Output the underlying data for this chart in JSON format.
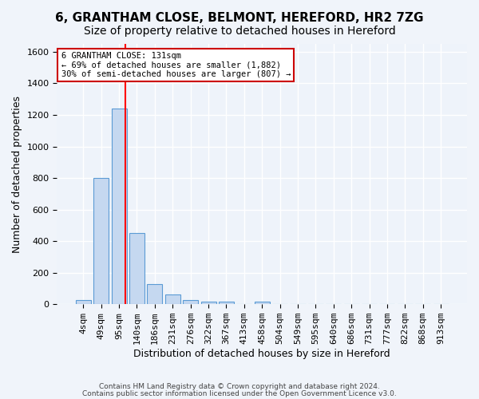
{
  "title1": "6, GRANTHAM CLOSE, BELMONT, HEREFORD, HR2 7ZG",
  "title2": "Size of property relative to detached houses in Hereford",
  "xlabel": "Distribution of detached houses by size in Hereford",
  "ylabel": "Number of detached properties",
  "bar_labels": [
    "4sqm",
    "49sqm",
    "95sqm",
    "140sqm",
    "186sqm",
    "231sqm",
    "276sqm",
    "322sqm",
    "367sqm",
    "413sqm",
    "458sqm",
    "504sqm",
    "549sqm",
    "595sqm",
    "640sqm",
    "686sqm",
    "731sqm",
    "777sqm",
    "822sqm",
    "868sqm",
    "913sqm"
  ],
  "bar_values": [
    25,
    800,
    1240,
    450,
    130,
    60,
    25,
    15,
    15,
    0,
    15,
    0,
    0,
    0,
    0,
    0,
    0,
    0,
    0,
    0,
    0
  ],
  "bar_color": "#c5d8f0",
  "bar_edge_color": "#5b9bd5",
  "ylim": [
    0,
    1650
  ],
  "yticks": [
    0,
    200,
    400,
    600,
    800,
    1000,
    1200,
    1400,
    1600
  ],
  "red_line_x": 2.36,
  "annotation_line1": "6 GRANTHAM CLOSE: 131sqm",
  "annotation_line2": "← 69% of detached houses are smaller (1,882)",
  "annotation_line3": "30% of semi-detached houses are larger (807) →",
  "annotation_box_color": "#ffffff",
  "annotation_box_edge": "#cc0000",
  "footer1": "Contains HM Land Registry data © Crown copyright and database right 2024.",
  "footer2": "Contains public sector information licensed under the Open Government Licence v3.0.",
  "bg_color": "#eef3fa",
  "fig_bg_color": "#f0f4fa",
  "grid_color": "#ffffff",
  "title1_fontsize": 11,
  "title2_fontsize": 10,
  "axis_fontsize": 9,
  "tick_fontsize": 8
}
